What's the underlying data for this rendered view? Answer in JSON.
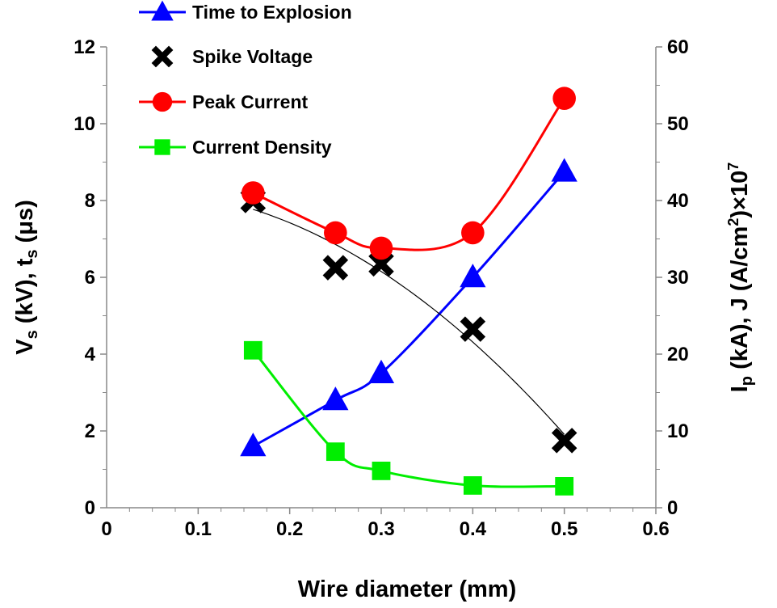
{
  "chart_data": {
    "type": "line",
    "title": "",
    "xlabel": "Wire diameter (mm)",
    "ylabel": {
      "main": "V",
      "sub1": "s",
      "mid": " (kV), t",
      "sub2": "s",
      "tail": " (μs)"
    },
    "y2label": {
      "main": "I",
      "sub1": "p",
      "mid": " (kA), J (A/cm",
      "sup1": "2",
      "tail": ")×10",
      "sup2": "7"
    },
    "xlim": [
      0,
      0.6
    ],
    "ylim": [
      0,
      12
    ],
    "y2lim": [
      0,
      60
    ],
    "x_ticks": [
      "0",
      "0.1",
      "0.2",
      "0.3",
      "0.4",
      "0.5",
      "0.6"
    ],
    "y_ticks": [
      "0",
      "2",
      "4",
      "6",
      "8",
      "10",
      "12"
    ],
    "y2_ticks": [
      "0",
      "10",
      "20",
      "30",
      "40",
      "50",
      "60"
    ],
    "x": [
      0.16,
      0.25,
      0.3,
      0.4,
      0.5
    ],
    "series": [
      {
        "name": "Time to Explosion",
        "axis": "left",
        "marker": "triangle",
        "color": "#0000ff",
        "values": [
          1.6,
          2.8,
          3.5,
          6.0,
          8.75
        ]
      },
      {
        "name": "Spike Voltage",
        "axis": "left",
        "marker": "x",
        "color": "#000000",
        "trendline": true,
        "values": [
          8.0,
          6.25,
          6.35,
          4.65,
          1.75
        ]
      },
      {
        "name": "Peak Current",
        "axis": "right",
        "marker": "circle",
        "color": "#ff0000",
        "values": [
          41.0,
          35.8,
          33.8,
          35.8,
          53.3
        ]
      },
      {
        "name": "Current Density",
        "axis": "right",
        "marker": "square",
        "color": "#00ee00",
        "values": [
          20.5,
          7.3,
          4.8,
          2.9,
          2.8
        ]
      }
    ],
    "legend_position": "top-left"
  }
}
